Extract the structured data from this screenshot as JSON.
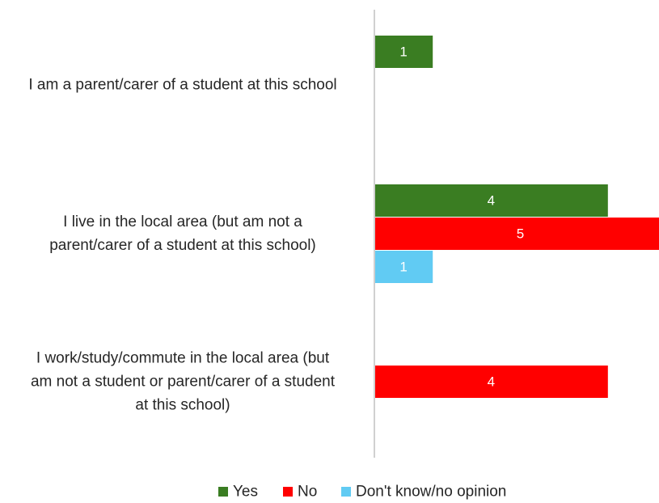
{
  "chart_data": {
    "type": "bar",
    "orientation": "horizontal",
    "title": "",
    "xlabel": "",
    "ylabel": "",
    "xlim": [
      0,
      5
    ],
    "grid": false,
    "legend_position": "bottom",
    "categories": [
      {
        "lines": [
          "I am a parent/carer of a student at this school"
        ]
      },
      {
        "lines": [
          "I live in the local area (but am not a",
          "parent/carer of a student at this school)"
        ]
      },
      {
        "lines": [
          "I work/study/commute in the local area (but",
          "am not a student or parent/carer of a student",
          "at this school)"
        ]
      }
    ],
    "series": [
      {
        "name": "Yes",
        "color": "#3a7d22",
        "values": [
          1,
          4,
          0
        ]
      },
      {
        "name": "No",
        "color": "#ff0000",
        "values": [
          0,
          5,
          4
        ]
      },
      {
        "name": "Don't know/no opinion",
        "color": "#61cbf3",
        "values": [
          0,
          1,
          0
        ]
      }
    ],
    "axis_color": "#d0d0d0",
    "label_color": "#ffffff"
  }
}
